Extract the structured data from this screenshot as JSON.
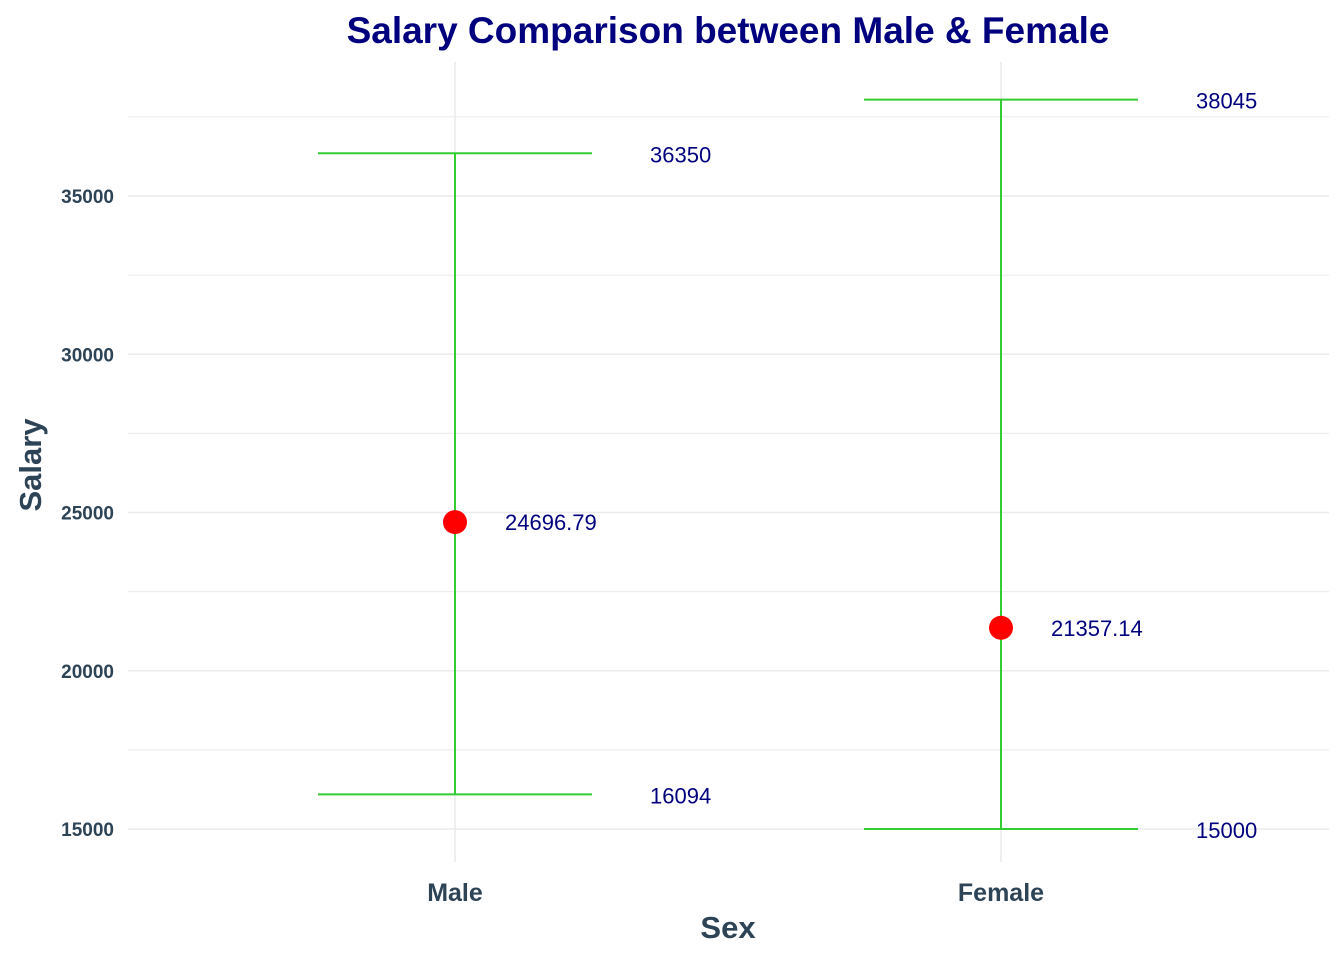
{
  "chart_data": {
    "type": "errorbar",
    "title": "Salary Comparison between Male & Female",
    "xlabel": "Sex",
    "ylabel": "Salary",
    "categories": [
      "Male",
      "Female"
    ],
    "points": [
      {
        "category": "Male",
        "mean": 24696.79,
        "min": 16094,
        "max": 36350,
        "mean_label": "24696.79",
        "min_label": "16094",
        "max_label": "36350"
      },
      {
        "category": "Female",
        "mean": 21357.14,
        "min": 15000,
        "max": 38045,
        "mean_label": "21357.14",
        "min_label": "15000",
        "max_label": "38045"
      }
    ],
    "ylim": [
      14000,
      38700
    ],
    "yticks": [
      15000,
      20000,
      25000,
      30000,
      35000
    ],
    "grid": true,
    "colors": {
      "errorbar": "#33cc33",
      "point": "#ff0000",
      "label": "#00007f",
      "title": "#00007f",
      "axis_text": "#2d4356",
      "grid": "#ebebeb"
    }
  }
}
